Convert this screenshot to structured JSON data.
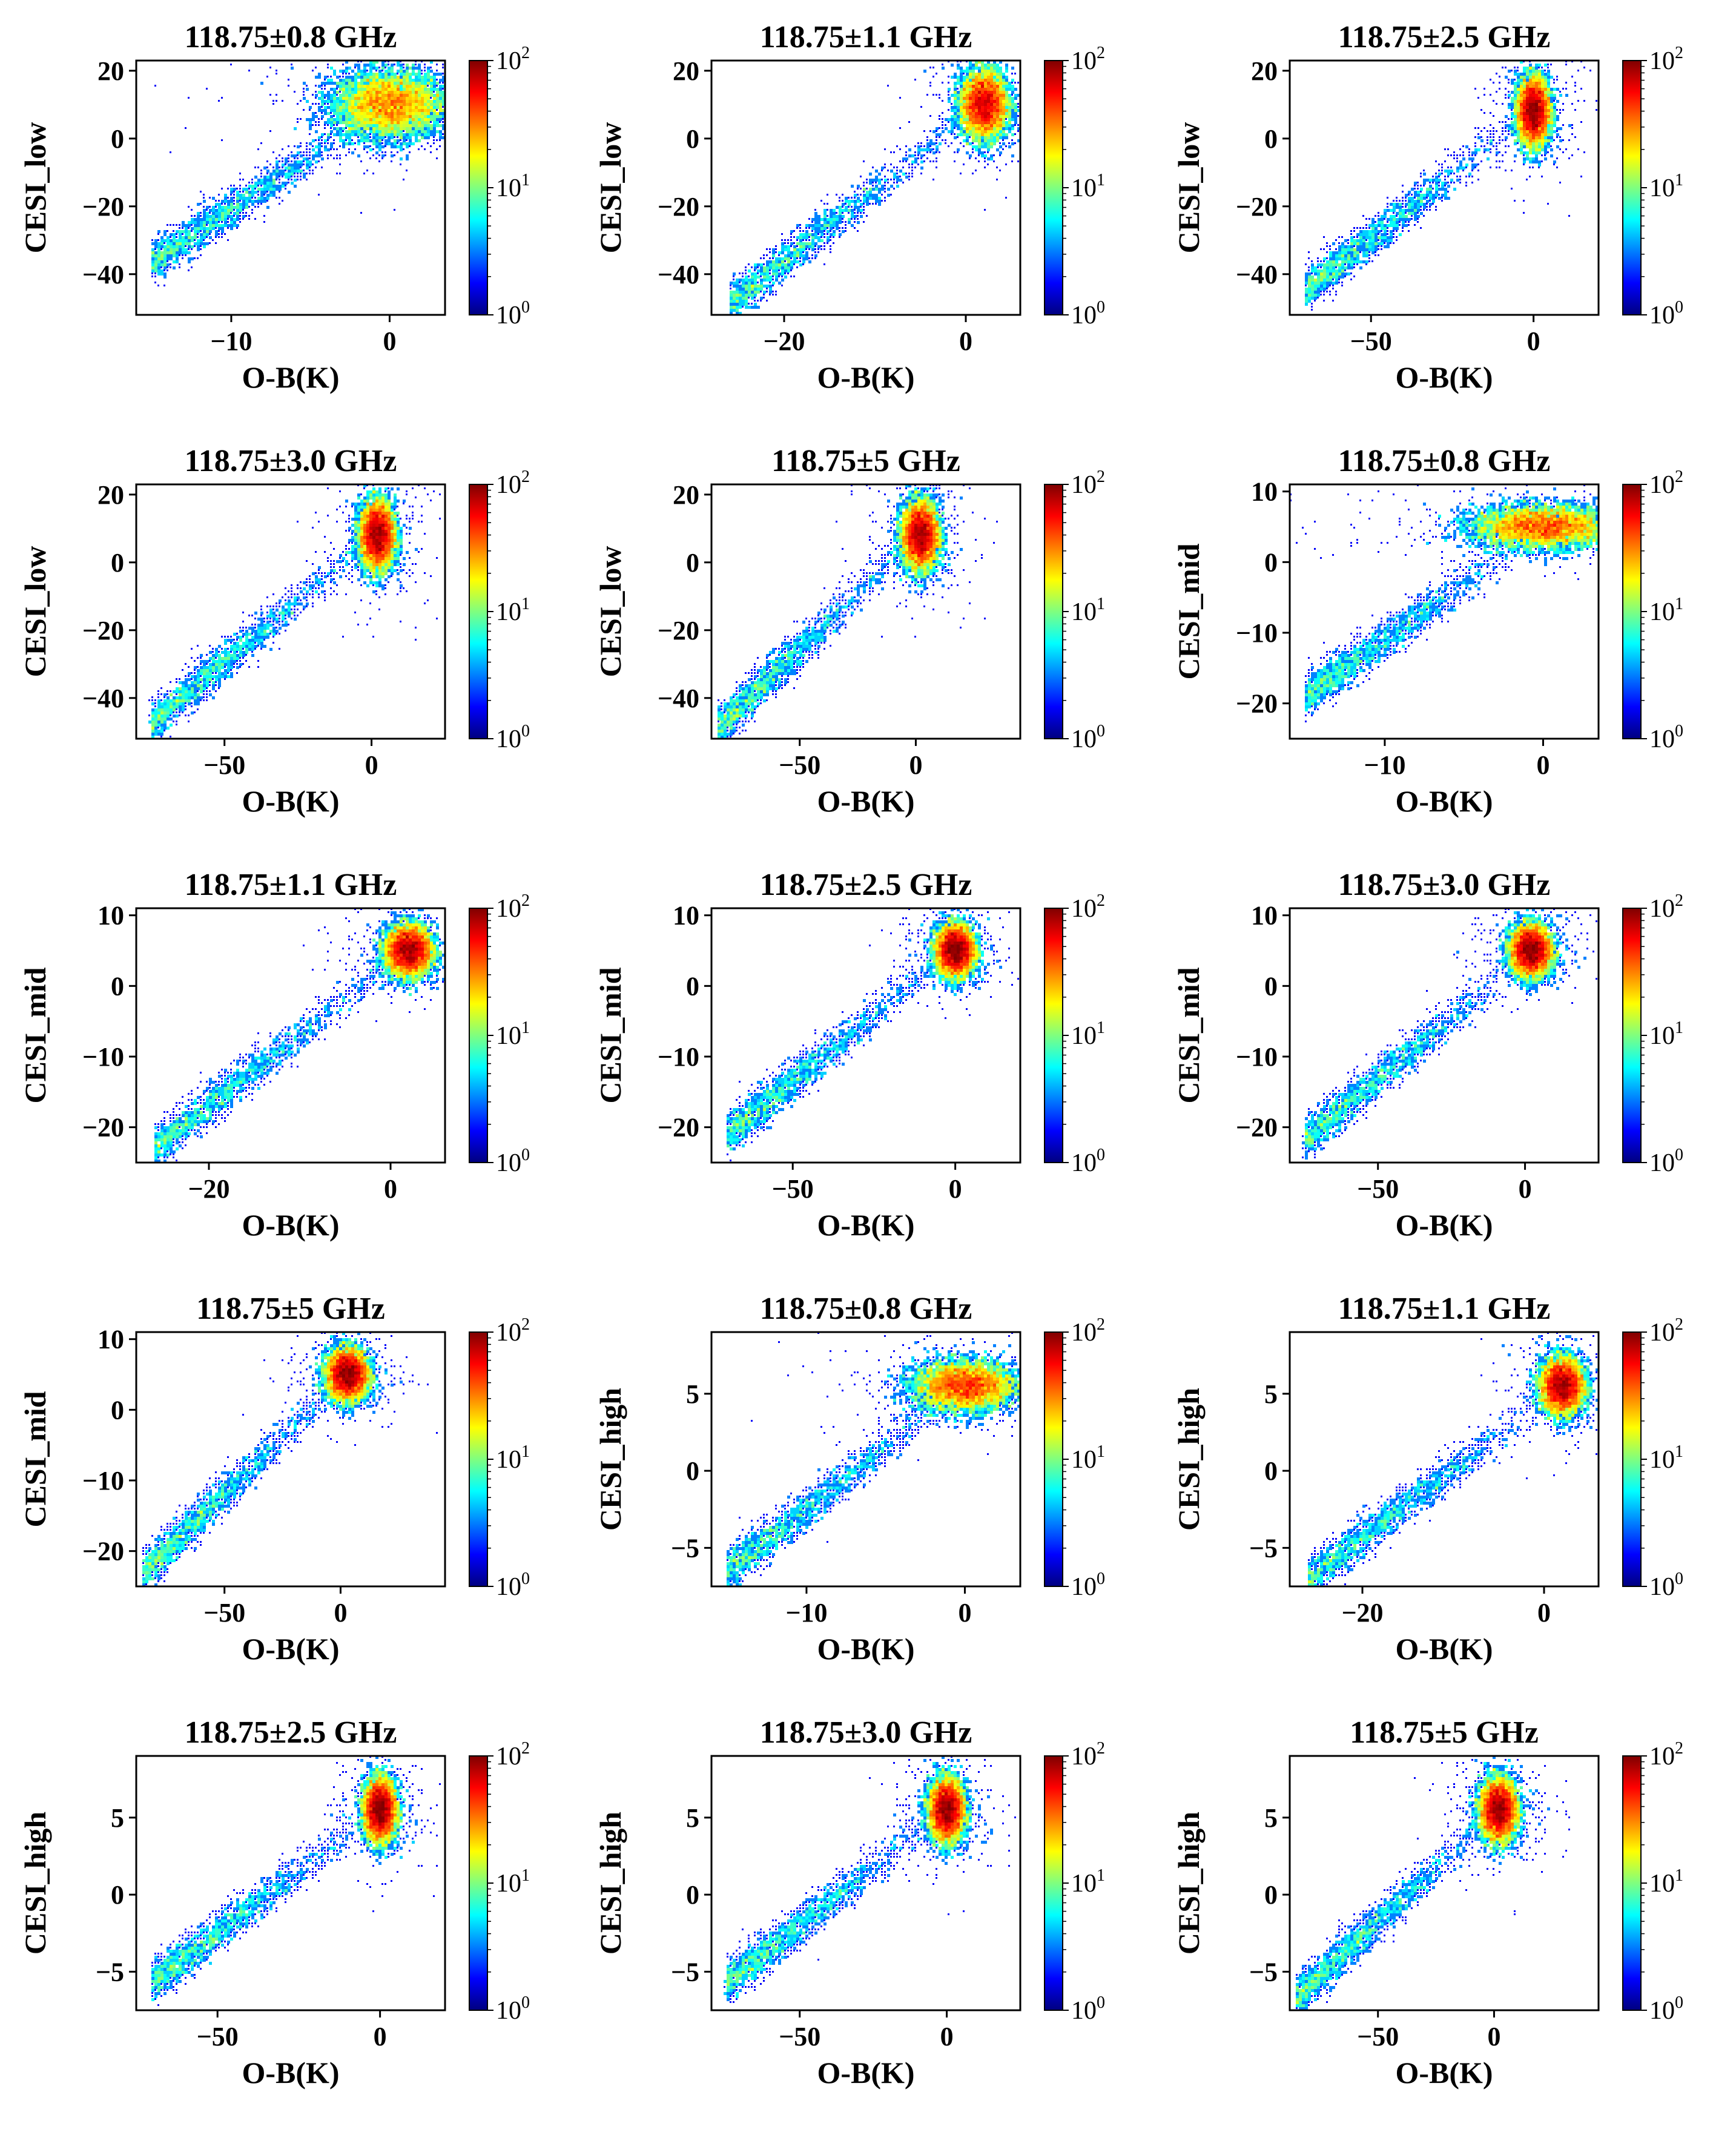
{
  "colors": {
    "colormap": [
      "#00007f",
      "#0000ff",
      "#007fff",
      "#00ffff",
      "#7fff7f",
      "#ffff00",
      "#ff7f00",
      "#ff0000",
      "#7f0000"
    ],
    "axis": "#000000"
  },
  "chart_data": [
    {
      "type": "heatmap",
      "title": "118.75±0.8 GHz",
      "xlabel": "O-B(K)",
      "ylabel": "CESI_low",
      "xlim": [
        -16,
        3.5
      ],
      "ylim": [
        -52,
        23
      ],
      "xticks": [
        -10,
        0
      ],
      "yticks": [
        -40,
        -20,
        0,
        20
      ],
      "xtick_labels": [
        "−10",
        "0"
      ],
      "ytick_labels": [
        "−40",
        "−20",
        "0",
        "20"
      ],
      "colorbar": {
        "scale": "log",
        "range": [
          1,
          100
        ],
        "ticks": [
          "10",
          "10",
          "10"
        ],
        "exponents": [
          "0",
          "1",
          "2"
        ]
      },
      "density": {
        "core": [
          0,
          10
        ],
        "core_spread": [
          1.8,
          5
        ],
        "slope": 3.1,
        "tail_x_min": -15
      }
    },
    {
      "type": "heatmap",
      "title": "118.75±1.1 GHz",
      "xlabel": "O-B(K)",
      "ylabel": "CESI_low",
      "xlim": [
        -28,
        6
      ],
      "ylim": [
        -52,
        23
      ],
      "xticks": [
        -20,
        0
      ],
      "yticks": [
        -40,
        -20,
        0,
        20
      ],
      "xtick_labels": [
        "−20",
        "0"
      ],
      "ytick_labels": [
        "−40",
        "−20",
        "0",
        "20"
      ],
      "colorbar": {
        "scale": "log",
        "range": [
          1,
          100
        ],
        "ticks": [
          "10",
          "10",
          "10"
        ],
        "exponents": [
          "0",
          "1",
          "2"
        ]
      },
      "density": {
        "core": [
          2,
          10
        ],
        "core_spread": [
          1.3,
          5
        ],
        "slope": 2.1,
        "tail_x_min": -26
      }
    },
    {
      "type": "heatmap",
      "title": "118.75±2.5 GHz",
      "xlabel": "O-B(K)",
      "ylabel": "CESI_low",
      "xlim": [
        -75,
        20
      ],
      "ylim": [
        -52,
        23
      ],
      "xticks": [
        -50,
        0
      ],
      "yticks": [
        -40,
        -20,
        0,
        20
      ],
      "xtick_labels": [
        "−50",
        "0"
      ],
      "ytick_labels": [
        "−40",
        "−20",
        "0",
        "20"
      ],
      "colorbar": {
        "scale": "log",
        "range": [
          1,
          100
        ],
        "ticks": [
          "10",
          "10",
          "10"
        ],
        "exponents": [
          "0",
          "1",
          "2"
        ]
      },
      "density": {
        "core": [
          0,
          8
        ],
        "core_spread": [
          2.5,
          5
        ],
        "slope": 0.75,
        "tail_x_min": -70
      }
    },
    {
      "type": "heatmap",
      "title": "118.75±3.0 GHz",
      "xlabel": "O-B(K)",
      "ylabel": "CESI_low",
      "xlim": [
        -80,
        25
      ],
      "ylim": [
        -52,
        23
      ],
      "xticks": [
        -50,
        0
      ],
      "yticks": [
        -40,
        -20,
        0,
        20
      ],
      "xtick_labels": [
        "−50",
        "0"
      ],
      "ytick_labels": [
        "−40",
        "−20",
        "0",
        "20"
      ],
      "colorbar": {
        "scale": "log",
        "range": [
          1,
          100
        ],
        "ticks": [
          "10",
          "10",
          "10"
        ],
        "exponents": [
          "0",
          "1",
          "2"
        ]
      },
      "density": {
        "core": [
          2,
          8
        ],
        "core_spread": [
          3,
          5
        ],
        "slope": 0.72,
        "tail_x_min": -75
      }
    },
    {
      "type": "heatmap",
      "title": "118.75±5 GHz",
      "xlabel": "O-B(K)",
      "ylabel": "CESI_low",
      "xlim": [
        -88,
        45
      ],
      "ylim": [
        -52,
        23
      ],
      "xticks": [
        -50,
        0
      ],
      "yticks": [
        -40,
        -20,
        0,
        20
      ],
      "xtick_labels": [
        "−50",
        "0"
      ],
      "ytick_labels": [
        "−40",
        "−20",
        "0",
        "20"
      ],
      "colorbar": {
        "scale": "log",
        "range": [
          1,
          100
        ],
        "ticks": [
          "10",
          "10",
          "10"
        ],
        "exponents": [
          "0",
          "1",
          "2"
        ]
      },
      "density": {
        "core": [
          2,
          8
        ],
        "core_spread": [
          4,
          5
        ],
        "slope": 0.65,
        "tail_x_min": -85
      }
    },
    {
      "type": "heatmap",
      "title": "118.75±0.8 GHz",
      "xlabel": "O-B(K)",
      "ylabel": "CESI_mid",
      "xlim": [
        -16,
        3.5
      ],
      "ylim": [
        -25,
        11
      ],
      "xticks": [
        -10,
        0
      ],
      "yticks": [
        -20,
        -10,
        0,
        10
      ],
      "xtick_labels": [
        "−10",
        "0"
      ],
      "ytick_labels": [
        "−20",
        "−10",
        "0",
        "10"
      ],
      "colorbar": {
        "scale": "log",
        "range": [
          1,
          100
        ],
        "ticks": [
          "10",
          "10",
          "10"
        ],
        "exponents": [
          "0",
          "1",
          "2"
        ]
      },
      "density": {
        "core": [
          0,
          5
        ],
        "core_spread": [
          2.2,
          1.5
        ],
        "slope": 1.6,
        "tail_x_min": -15
      }
    },
    {
      "type": "heatmap",
      "title": "118.75±1.1 GHz",
      "xlabel": "O-B(K)",
      "ylabel": "CESI_mid",
      "xlim": [
        -28,
        6
      ],
      "ylim": [
        -25,
        11
      ],
      "xticks": [
        -20,
        0
      ],
      "yticks": [
        -20,
        -10,
        0,
        10
      ],
      "xtick_labels": [
        "−20",
        "0"
      ],
      "ytick_labels": [
        "−20",
        "−10",
        "0",
        "10"
      ],
      "colorbar": {
        "scale": "log",
        "range": [
          1,
          100
        ],
        "ticks": [
          "10",
          "10",
          "10"
        ],
        "exponents": [
          "0",
          "1",
          "2"
        ]
      },
      "density": {
        "core": [
          2,
          5
        ],
        "core_spread": [
          1.3,
          1.8
        ],
        "slope": 1.0,
        "tail_x_min": -26
      }
    },
    {
      "type": "heatmap",
      "title": "118.75±2.5 GHz",
      "xlabel": "O-B(K)",
      "ylabel": "CESI_mid",
      "xlim": [
        -75,
        20
      ],
      "ylim": [
        -25,
        11
      ],
      "xticks": [
        -50,
        0
      ],
      "yticks": [
        -20,
        -10,
        0,
        10
      ],
      "xtick_labels": [
        "−50",
        "0"
      ],
      "ytick_labels": [
        "−20",
        "−10",
        "0",
        "10"
      ],
      "colorbar": {
        "scale": "log",
        "range": [
          1,
          100
        ],
        "ticks": [
          "10",
          "10",
          "10"
        ],
        "exponents": [
          "0",
          "1",
          "2"
        ]
      },
      "density": {
        "core": [
          0,
          5
        ],
        "core_spread": [
          3,
          1.8
        ],
        "slope": 0.37,
        "tail_x_min": -70
      }
    },
    {
      "type": "heatmap",
      "title": "118.75±3.0 GHz",
      "xlabel": "O-B(K)",
      "ylabel": "CESI_mid",
      "xlim": [
        -80,
        25
      ],
      "ylim": [
        -25,
        11
      ],
      "xticks": [
        -50,
        0
      ],
      "yticks": [
        -20,
        -10,
        0,
        10
      ],
      "xtick_labels": [
        "−50",
        "0"
      ],
      "ytick_labels": [
        "−20",
        "−10",
        "0",
        "10"
      ],
      "colorbar": {
        "scale": "log",
        "range": [
          1,
          100
        ],
        "ticks": [
          "10",
          "10",
          "10"
        ],
        "exponents": [
          "0",
          "1",
          "2"
        ]
      },
      "density": {
        "core": [
          2,
          5
        ],
        "core_spread": [
          3.5,
          1.8
        ],
        "slope": 0.35,
        "tail_x_min": -75
      }
    },
    {
      "type": "heatmap",
      "title": "118.75±5 GHz",
      "xlabel": "O-B(K)",
      "ylabel": "CESI_mid",
      "xlim": [
        -88,
        45
      ],
      "ylim": [
        -25,
        11
      ],
      "xticks": [
        -50,
        0
      ],
      "yticks": [
        -20,
        -10,
        0,
        10
      ],
      "xtick_labels": [
        "−50",
        "0"
      ],
      "ytick_labels": [
        "−20",
        "−10",
        "0",
        "10"
      ],
      "colorbar": {
        "scale": "log",
        "range": [
          1,
          100
        ],
        "ticks": [
          "10",
          "10",
          "10"
        ],
        "exponents": [
          "0",
          "1",
          "2"
        ]
      },
      "density": {
        "core": [
          3,
          5
        ],
        "core_spread": [
          4.5,
          1.8
        ],
        "slope": 0.32,
        "tail_x_min": -85
      }
    },
    {
      "type": "heatmap",
      "title": "118.75±0.8 GHz",
      "xlabel": "O-B(K)",
      "ylabel": "CESI_high",
      "xlim": [
        -16,
        3.5
      ],
      "ylim": [
        -7.5,
        9
      ],
      "xticks": [
        -10,
        0
      ],
      "yticks": [
        -5,
        0,
        5
      ],
      "xtick_labels": [
        "−10",
        "0"
      ],
      "ytick_labels": [
        "−5",
        "0",
        "5"
      ],
      "colorbar": {
        "scale": "log",
        "range": [
          1,
          100
        ],
        "ticks": [
          "10",
          "10",
          "10"
        ],
        "exponents": [
          "0",
          "1",
          "2"
        ]
      },
      "density": {
        "core": [
          0,
          5.5
        ],
        "core_spread": [
          1.6,
          0.8
        ],
        "slope": 0.8,
        "tail_x_min": -15
      }
    },
    {
      "type": "heatmap",
      "title": "118.75±1.1 GHz",
      "xlabel": "O-B(K)",
      "ylabel": "CESI_high",
      "xlim": [
        -28,
        6
      ],
      "ylim": [
        -7.5,
        9
      ],
      "xticks": [
        -20,
        0
      ],
      "yticks": [
        -5,
        0,
        5
      ],
      "xtick_labels": [
        "−20",
        "0"
      ],
      "ytick_labels": [
        "−5",
        "0",
        "5"
      ],
      "colorbar": {
        "scale": "log",
        "range": [
          1,
          100
        ],
        "ticks": [
          "10",
          "10",
          "10"
        ],
        "exponents": [
          "0",
          "1",
          "2"
        ]
      },
      "density": {
        "core": [
          2,
          5.5
        ],
        "core_spread": [
          1.2,
          0.9
        ],
        "slope": 0.45,
        "tail_x_min": -26
      }
    },
    {
      "type": "heatmap",
      "title": "118.75±2.5 GHz",
      "xlabel": "O-B(K)",
      "ylabel": "CESI_high",
      "xlim": [
        -75,
        20
      ],
      "ylim": [
        -7.5,
        9
      ],
      "xticks": [
        -50,
        0
      ],
      "yticks": [
        -5,
        0,
        5
      ],
      "xtick_labels": [
        "−50",
        "0"
      ],
      "ytick_labels": [
        "−5",
        "0",
        "5"
      ],
      "colorbar": {
        "scale": "log",
        "range": [
          1,
          100
        ],
        "ticks": [
          "10",
          "10",
          "10"
        ],
        "exponents": [
          "0",
          "1",
          "2"
        ]
      },
      "density": {
        "core": [
          0,
          5.5
        ],
        "core_spread": [
          2.5,
          1.0
        ],
        "slope": 0.16,
        "tail_x_min": -70
      }
    },
    {
      "type": "heatmap",
      "title": "118.75±3.0 GHz",
      "xlabel": "O-B(K)",
      "ylabel": "CESI_high",
      "xlim": [
        -80,
        25
      ],
      "ylim": [
        -7.5,
        9
      ],
      "xticks": [
        -50,
        0
      ],
      "yticks": [
        -5,
        0,
        5
      ],
      "xtick_labels": [
        "−50",
        "0"
      ],
      "ytick_labels": [
        "−5",
        "0",
        "5"
      ],
      "colorbar": {
        "scale": "log",
        "range": [
          1,
          100
        ],
        "ticks": [
          "10",
          "10",
          "10"
        ],
        "exponents": [
          "0",
          "1",
          "2"
        ]
      },
      "density": {
        "core": [
          0,
          5.5
        ],
        "core_spread": [
          3,
          1.0
        ],
        "slope": 0.15,
        "tail_x_min": -75
      }
    },
    {
      "type": "heatmap",
      "title": "118.75±5 GHz",
      "xlabel": "O-B(K)",
      "ylabel": "CESI_high",
      "xlim": [
        -88,
        45
      ],
      "ylim": [
        -7.5,
        9
      ],
      "xticks": [
        -50,
        0
      ],
      "yticks": [
        -5,
        0,
        5
      ],
      "xtick_labels": [
        "−50",
        "0"
      ],
      "ytick_labels": [
        "−5",
        "0",
        "5"
      ],
      "colorbar": {
        "scale": "log",
        "range": [
          1,
          100
        ],
        "ticks": [
          "10",
          "10",
          "10"
        ],
        "exponents": [
          "0",
          "1",
          "2"
        ]
      },
      "density": {
        "core": [
          2,
          5.5
        ],
        "core_spread": [
          4,
          1.0
        ],
        "slope": 0.14,
        "tail_x_min": -85
      }
    }
  ]
}
